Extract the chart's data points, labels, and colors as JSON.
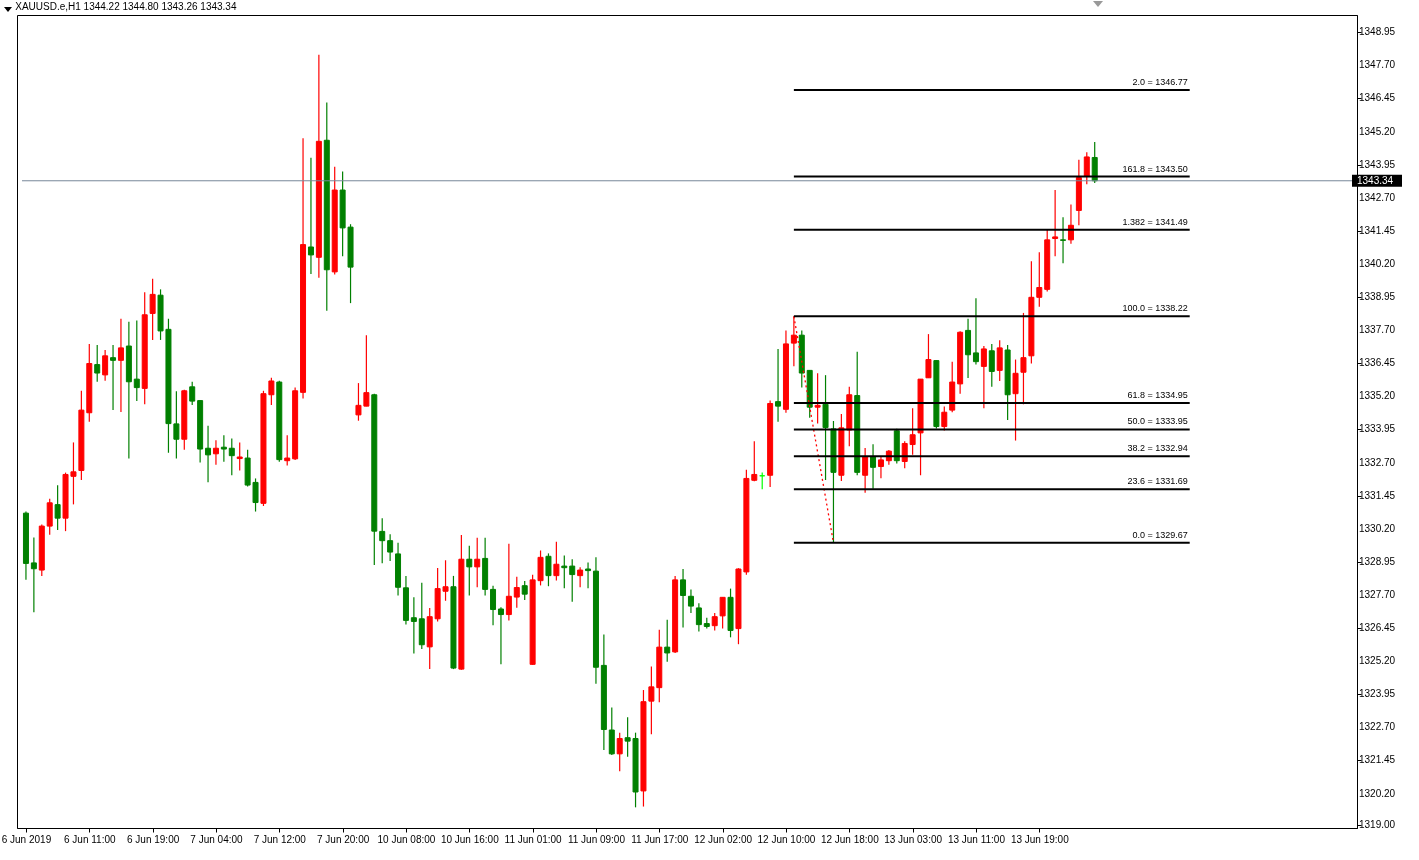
{
  "chart_data": {
    "type": "candlestick",
    "title": "XAUUSD.e,H1 1344.22 1344.80 1343.26 1343.34",
    "categories": [
      "6 Jun 2019",
      null,
      null,
      null,
      null,
      null,
      null,
      null,
      "6 Jun 11:00",
      null,
      null,
      null,
      null,
      null,
      null,
      null,
      "6 Jun 19:00",
      null,
      null,
      null,
      null,
      null,
      null,
      null,
      "7 Jun 04:00",
      null,
      null,
      null,
      null,
      null,
      null,
      null,
      "7 Jun 12:00",
      null,
      null,
      null,
      null,
      null,
      null,
      null,
      "7 Jun 20:00",
      null,
      null,
      null,
      null,
      null,
      null,
      null,
      "10 Jun 08:00",
      null,
      null,
      null,
      null,
      null,
      null,
      null,
      "10 Jun 16:00",
      null,
      null,
      null,
      null,
      null,
      null,
      null,
      "11 Jun 01:00",
      null,
      null,
      null,
      null,
      null,
      null,
      null,
      "11 Jun 09:00",
      null,
      null,
      null,
      null,
      null,
      null,
      null,
      "11 Jun 17:00",
      null,
      null,
      null,
      null,
      null,
      null,
      null,
      "12 Jun 02:00",
      null,
      null,
      null,
      null,
      null,
      null,
      null,
      "12 Jun 10:00",
      null,
      null,
      null,
      null,
      null,
      null,
      null,
      "12 Jun 18:00",
      null,
      null,
      null,
      null,
      null,
      null,
      null,
      "13 Jun 03:00",
      null,
      null,
      null,
      null,
      null,
      null,
      null,
      "13 Jun 11:00",
      null,
      null,
      null,
      null,
      null,
      null,
      null,
      "13 Jun 19:00",
      null,
      null,
      null,
      null,
      null,
      null,
      null,
      null,
      null,
      null,
      null,
      null,
      null,
      null,
      null,
      null,
      null,
      null,
      null,
      null,
      null,
      null,
      null,
      null,
      null,
      null,
      null,
      null,
      null,
      null,
      null,
      null,
      null,
      null,
      null,
      null,
      null,
      null,
      null
    ],
    "ohlc": [
      [
        1330.79,
        1330.85,
        1328.27,
        1328.89
      ],
      [
        1328.91,
        1329.87,
        1327.05,
        1328.69
      ],
      [
        1328.64,
        1330.36,
        1328.42,
        1330.3
      ],
      [
        1330.3,
        1331.33,
        1329.97,
        1331.18
      ],
      [
        1331.11,
        1331.84,
        1330.15,
        1330.6
      ],
      [
        1330.6,
        1332.32,
        1330.11,
        1332.25
      ],
      [
        1332.18,
        1333.46,
        1331.12,
        1332.35
      ],
      [
        1332.4,
        1335.41,
        1332.04,
        1334.68
      ],
      [
        1334.58,
        1337.18,
        1334.24,
        1336.44
      ],
      [
        1336.4,
        1337.14,
        1335.75,
        1336.08
      ],
      [
        1336.01,
        1336.95,
        1335.79,
        1336.73
      ],
      [
        1336.66,
        1337.14,
        1334.68,
        1336.56
      ],
      [
        1336.56,
        1338.13,
        1334.61,
        1337.03
      ],
      [
        1337.1,
        1338.02,
        1332.85,
        1335.75
      ],
      [
        1335.85,
        1338.06,
        1335.02,
        1335.53
      ],
      [
        1335.5,
        1339.13,
        1334.9,
        1338.28
      ],
      [
        1338.33,
        1339.64,
        1337.33,
        1339.05
      ],
      [
        1339.02,
        1339.24,
        1337.33,
        1337.67
      ],
      [
        1337.73,
        1338.13,
        1333.07,
        1334.17
      ],
      [
        1334.16,
        1335.39,
        1332.85,
        1333.58
      ],
      [
        1333.58,
        1335.45,
        1333.18,
        1335.41
      ],
      [
        1335.56,
        1335.75,
        1334.87,
        1335.02
      ],
      [
        1335.04,
        1335.04,
        1332.7,
        1333.21
      ],
      [
        1333.24,
        1334.09,
        1331.96,
        1332.99
      ],
      [
        1333.03,
        1333.54,
        1332.62,
        1333.24
      ],
      [
        1333.28,
        1333.73,
        1332.73,
        1333.21
      ],
      [
        1333.24,
        1333.61,
        1332.22,
        1332.96
      ],
      [
        1332.85,
        1333.46,
        1332.4,
        1332.91
      ],
      [
        1332.87,
        1333.18,
        1331.8,
        1331.85
      ],
      [
        1331.95,
        1332.1,
        1330.85,
        1331.19
      ],
      [
        1331.16,
        1335.41,
        1331.06,
        1335.3
      ],
      [
        1335.26,
        1335.9,
        1334.87,
        1335.78
      ],
      [
        1335.74,
        1335.79,
        1332.73,
        1332.81
      ],
      [
        1332.77,
        1333.73,
        1332.59,
        1332.87
      ],
      [
        1332.84,
        1335.53,
        1332.8,
        1335.41
      ],
      [
        1335.35,
        1344.95,
        1335.12,
        1340.93
      ],
      [
        1340.84,
        1344.21,
        1339.82,
        1340.54
      ],
      [
        1340.45,
        1348.1,
        1339.68,
        1344.83
      ],
      [
        1344.87,
        1346.3,
        1338.43,
        1339.98
      ],
      [
        1339.9,
        1343.87,
        1339.8,
        1342.99
      ],
      [
        1342.99,
        1343.69,
        1340.49,
        1341.56
      ],
      [
        1341.59,
        1341.7,
        1338.72,
        1340.08
      ],
      [
        1334.5,
        1335.7,
        1334.28,
        1334.86
      ],
      [
        1334.83,
        1337.51,
        1334.83,
        1335.34
      ],
      [
        1335.26,
        1335.3,
        1328.83,
        1330.11
      ],
      [
        1330.1,
        1330.6,
        1328.9,
        1329.75
      ],
      [
        1329.75,
        1329.99,
        1328.98,
        1329.32
      ],
      [
        1329.25,
        1329.67,
        1327.68,
        1327.99
      ],
      [
        1327.97,
        1328.42,
        1326.58,
        1326.74
      ],
      [
        1326.84,
        1327.61,
        1325.49,
        1326.7
      ],
      [
        1326.8,
        1328.16,
        1325.66,
        1325.82
      ],
      [
        1325.74,
        1327.21,
        1324.9,
        1326.88
      ],
      [
        1326.8,
        1328.72,
        1326.7,
        1327.94
      ],
      [
        1327.84,
        1329.01,
        1327.48,
        1328.01
      ],
      [
        1328.01,
        1328.42,
        1324.9,
        1324.94
      ],
      [
        1324.9,
        1329.96,
        1324.88,
        1329.05
      ],
      [
        1329.05,
        1329.56,
        1327.68,
        1328.76
      ],
      [
        1328.76,
        1329.86,
        1327.99,
        1329.05
      ],
      [
        1329.08,
        1329.86,
        1327.68,
        1327.91
      ],
      [
        1327.91,
        1328.05,
        1326.56,
        1327.15
      ],
      [
        1327.17,
        1327.24,
        1325.08,
        1326.96
      ],
      [
        1326.96,
        1329.63,
        1326.74,
        1327.65
      ],
      [
        1327.62,
        1328.39,
        1327.22,
        1327.98
      ],
      [
        1328.05,
        1328.23,
        1327.51,
        1327.73
      ],
      [
        1325.08,
        1328.46,
        1325.06,
        1328.27
      ],
      [
        1328.24,
        1329.38,
        1328.06,
        1329.12
      ],
      [
        1329.16,
        1329.27,
        1328.03,
        1328.43
      ],
      [
        1328.43,
        1329.71,
        1328.25,
        1328.86
      ],
      [
        1328.79,
        1329.19,
        1327.95,
        1328.73
      ],
      [
        1328.79,
        1329.05,
        1327.44,
        1328.47
      ],
      [
        1328.43,
        1328.75,
        1327.99,
        1328.64
      ],
      [
        1328.68,
        1328.93,
        1327.95,
        1328.62
      ],
      [
        1328.6,
        1329.12,
        1324.35,
        1324.97
      ],
      [
        1325.04,
        1326.21,
        1321.85,
        1322.62
      ],
      [
        1322.6,
        1323.45,
        1321.66,
        1321.7
      ],
      [
        1321.7,
        1322.5,
        1321.04,
        1322.28
      ],
      [
        1322.31,
        1323.08,
        1321.59,
        1322.18
      ],
      [
        1322.28,
        1322.5,
        1319.68,
        1320.26
      ],
      [
        1320.3,
        1324.11,
        1319.71,
        1323.67
      ],
      [
        1323.69,
        1325.0,
        1322.44,
        1324.23
      ],
      [
        1324.2,
        1326.39,
        1323.65,
        1325.73
      ],
      [
        1325.73,
        1326.76,
        1325.18,
        1325.51
      ],
      [
        1325.55,
        1328.42,
        1325.51,
        1328.27
      ],
      [
        1328.27,
        1328.68,
        1326.47,
        1327.68
      ],
      [
        1327.65,
        1327.91,
        1327.02,
        1327.28
      ],
      [
        1327.21,
        1327.39,
        1326.32,
        1326.58
      ],
      [
        1326.62,
        1326.84,
        1326.43,
        1326.51
      ],
      [
        1326.54,
        1327.02,
        1326.36,
        1326.88
      ],
      [
        1326.91,
        1327.61,
        1326.43,
        1327.61
      ],
      [
        1327.61,
        1327.94,
        1326.1,
        1326.36
      ],
      [
        1326.43,
        1328.71,
        1325.84,
        1328.68
      ],
      [
        1328.57,
        1332.43,
        1328.46,
        1332.1
      ],
      [
        1332.03,
        1333.5,
        1331.99,
        1332.25
      ],
      [
        1332.2,
        1332.32,
        1331.69,
        1332.2
      ],
      [
        1332.22,
        1335.04,
        1331.78,
        1334.93
      ],
      [
        1335.0,
        1336.99,
        1334.24,
        1334.83
      ],
      [
        1334.71,
        1337.69,
        1334.58,
        1337.18
      ],
      [
        1337.21,
        1338.22,
        1336.34,
        1337.51
      ],
      [
        1337.51,
        1337.69,
        1335.53,
        1336.08
      ],
      [
        1336.18,
        1336.18,
        1334.39,
        1334.79
      ],
      [
        1334.79,
        1336.07,
        1334.17,
        1334.86
      ],
      [
        1334.9,
        1336.0,
        1332.04,
        1334.02
      ],
      [
        1333.97,
        1334.27,
        1329.67,
        1332.33
      ],
      [
        1332.22,
        1334.53,
        1332.0,
        1334.01
      ],
      [
        1333.93,
        1335.56,
        1333.32,
        1335.26
      ],
      [
        1335.23,
        1336.88,
        1332.22,
        1332.33
      ],
      [
        1332.22,
        1333.25,
        1331.56,
        1332.92
      ],
      [
        1332.92,
        1333.39,
        1331.71,
        1332.52
      ],
      [
        1332.55,
        1332.92,
        1332.11,
        1332.8
      ],
      [
        1332.77,
        1333.17,
        1332.62,
        1333.13
      ],
      [
        1333.9,
        1333.98,
        1332.66,
        1332.77
      ],
      [
        1332.74,
        1333.5,
        1332.48,
        1333.42
      ],
      [
        1333.38,
        1334.75,
        1332.99,
        1333.75
      ],
      [
        1333.82,
        1335.85,
        1332.22,
        1335.85
      ],
      [
        1335.9,
        1337.55,
        1335.9,
        1336.59
      ],
      [
        1336.55,
        1336.55,
        1333.99,
        1334.06
      ],
      [
        1334.06,
        1334.82,
        1333.91,
        1334.6
      ],
      [
        1334.68,
        1336.51,
        1334.6,
        1335.74
      ],
      [
        1335.67,
        1337.66,
        1335.3,
        1337.62
      ],
      [
        1337.69,
        1338.13,
        1335.89,
        1336.77
      ],
      [
        1336.84,
        1338.9,
        1336.4,
        1336.51
      ],
      [
        1336.33,
        1337.1,
        1334.75,
        1336.99
      ],
      [
        1336.92,
        1337.18,
        1335.56,
        1336.14
      ],
      [
        1336.18,
        1337.32,
        1335.78,
        1337.03
      ],
      [
        1336.95,
        1337.14,
        1334.31,
        1335.26
      ],
      [
        1335.3,
        1336.59,
        1333.53,
        1336.07
      ],
      [
        1336.11,
        1338.35,
        1334.9,
        1336.66
      ],
      [
        1336.73,
        1340.3,
        1336.44,
        1338.94
      ],
      [
        1338.94,
        1340.64,
        1338.58,
        1339.31
      ],
      [
        1339.24,
        1341.52,
        1339.16,
        1341.11
      ],
      [
        1341.16,
        1342.99,
        1340.49,
        1341.22
      ],
      [
        1341.11,
        1341.96,
        1340.23,
        1341.09
      ],
      [
        1341.11,
        1342.44,
        1340.96,
        1341.66
      ],
      [
        1342.22,
        1344.13,
        1341.66,
        1343.46
      ],
      [
        1343.52,
        1344.42,
        1343.21,
        1344.24
      ],
      [
        1344.22,
        1344.8,
        1343.26,
        1343.34
      ],
      null,
      null,
      null,
      null,
      null,
      null,
      null,
      null,
      null,
      null,
      null,
      null,
      null,
      null,
      null,
      null,
      null,
      null,
      null,
      null,
      null,
      null,
      null,
      null,
      null,
      null,
      null,
      null,
      null,
      null,
      null,
      null
    ],
    "colors": [
      "#008000",
      "#008000",
      "#ff0000",
      "#ff0000",
      "#008000",
      "#ff0000",
      "#ff0000",
      "#ff0000",
      "#ff0000",
      "#008000",
      "#ff0000",
      "#008000",
      "#ff0000",
      "#008000",
      "#008000",
      "#ff0000",
      "#ff0000",
      "#008000",
      "#008000",
      "#008000",
      "#ff0000",
      "#008000",
      "#008000",
      "#008000",
      "#ff0000",
      "#008000",
      "#008000",
      "#ff0000",
      "#008000",
      "#008000",
      "#ff0000",
      "#ff0000",
      "#008000",
      "#ff0000",
      "#ff0000",
      "#ff0000",
      "#008000",
      "#ff0000",
      "#008000",
      "#ff0000",
      "#008000",
      "#008000",
      "#ff0000",
      "#ff0000",
      "#008000",
      "#008000",
      "#008000",
      "#008000",
      "#008000",
      "#008000",
      "#008000",
      "#ff0000",
      "#ff0000",
      "#ff0000",
      "#008000",
      "#ff0000",
      "#008000",
      "#ff0000",
      "#008000",
      "#008000",
      "#008000",
      "#ff0000",
      "#ff0000",
      "#008000",
      "#ff0000",
      "#ff0000",
      "#008000",
      "#ff0000",
      "#008000",
      "#008000",
      "#ff0000",
      "#008000",
      "#008000",
      "#008000",
      "#008000",
      "#ff0000",
      "#008000",
      "#008000",
      "#ff0000",
      "#ff0000",
      "#ff0000",
      "#008000",
      "#ff0000",
      "#008000",
      "#008000",
      "#008000",
      "#008000",
      "#ff0000",
      "#ff0000",
      "#008000",
      "#ff0000",
      "#ff0000",
      "#ff0000",
      "#00ff00",
      "#ff0000",
      "#008000",
      "#ff0000",
      "#ff0000",
      "#008000",
      "#008000",
      "#ff0000",
      "#008000",
      "#008000",
      "#ff0000",
      "#ff0000",
      "#008000",
      "#ff0000",
      "#008000",
      "#ff0000",
      "#ff0000",
      "#008000",
      "#ff0000",
      "#ff0000",
      "#ff0000",
      "#ff0000",
      "#008000",
      "#ff0000",
      "#ff0000",
      "#ff0000",
      "#008000",
      "#008000",
      "#ff0000",
      "#008000",
      "#ff0000",
      "#008000",
      "#ff0000",
      "#ff0000",
      "#ff0000",
      "#ff0000",
      "#ff0000",
      "#ff0000",
      "#008000",
      "#ff0000",
      "#ff0000",
      "#ff0000",
      "#008000",
      null,
      null,
      null,
      null,
      null,
      null,
      null,
      null,
      null,
      null,
      null,
      null,
      null,
      null,
      null,
      null,
      null,
      null,
      null,
      null,
      null,
      null,
      null,
      null,
      null,
      null,
      null,
      null,
      null,
      null,
      null,
      null
    ],
    "series": [
      {
        "type": "line",
        "color": "#ff0000",
        "line_style": "dotted",
        "values": [
          null,
          null,
          null,
          null,
          null,
          null,
          null,
          null,
          null,
          null,
          null,
          null,
          null,
          null,
          null,
          null,
          null,
          null,
          null,
          null,
          null,
          null,
          null,
          null,
          null,
          null,
          null,
          null,
          null,
          null,
          null,
          null,
          null,
          null,
          null,
          null,
          null,
          null,
          null,
          null,
          null,
          null,
          null,
          null,
          null,
          null,
          null,
          null,
          null,
          null,
          null,
          null,
          null,
          null,
          null,
          null,
          null,
          null,
          null,
          null,
          null,
          null,
          null,
          null,
          null,
          null,
          null,
          null,
          null,
          null,
          null,
          null,
          null,
          null,
          null,
          null,
          null,
          null,
          null,
          null,
          null,
          null,
          null,
          null,
          null,
          null,
          null,
          null,
          null,
          null,
          null,
          null,
          null,
          null,
          null,
          null,
          null,
          1338.22,
          null,
          null,
          null,
          null,
          1329.67,
          null,
          null,
          null,
          null,
          null,
          null,
          null,
          null,
          null,
          null,
          null,
          null,
          null,
          null,
          null,
          null,
          null,
          null,
          null,
          null,
          null,
          null,
          null,
          null,
          null,
          null,
          null,
          null,
          null,
          null,
          null,
          null,
          null,
          null,
          null,
          null,
          null,
          null,
          null,
          null,
          null,
          null,
          null,
          null,
          null,
          null,
          null,
          null,
          null,
          null,
          null,
          null,
          null,
          null,
          null,
          null,
          null,
          null,
          null,
          null,
          null,
          null,
          null,
          null,
          null
        ]
      }
    ],
    "ref_lines": [
      {
        "axis": "y",
        "value": 1343.34,
        "label": "1343.34",
        "color": "#778899"
      },
      {
        "axis": "y",
        "value": 1346.77,
        "label": "2.0 = 1346.77",
        "color": "#000000"
      },
      {
        "axis": "y",
        "value": 1343.5,
        "label": "161.8 = 1343.50",
        "color": "#000000"
      },
      {
        "axis": "y",
        "value": 1341.49,
        "label": "1.382 = 1341.49",
        "color": "#000000"
      },
      {
        "axis": "y",
        "value": 1338.22,
        "label": "100.0 = 1338.22",
        "color": "#000000"
      },
      {
        "axis": "y",
        "value": 1334.95,
        "label": "61.8 = 1334.95",
        "color": "#000000"
      },
      {
        "axis": "y",
        "value": 1333.95,
        "label": "50.0 = 1333.95",
        "color": "#000000"
      },
      {
        "axis": "y",
        "value": 1332.94,
        "label": "38.2 = 1332.94",
        "color": "#000000"
      },
      {
        "axis": "y",
        "value": 1331.69,
        "label": "23.6 = 1331.69",
        "color": "#000000"
      },
      {
        "axis": "y",
        "value": 1329.67,
        "label": "0.0 = 1329.67",
        "color": "#000000"
      }
    ],
    "ylim": [
      1318.9,
      1349.6
    ],
    "yticks": [
      {
        "value": 1319,
        "label": "1319.00"
      },
      {
        "value": 1320.2,
        "label": "1320.20"
      },
      {
        "value": 1321.45,
        "label": "1321.45"
      },
      {
        "value": 1322.7,
        "label": "1322.70"
      },
      {
        "value": 1323.95,
        "label": "1323.95"
      },
      {
        "value": 1325.2,
        "label": "1325.20"
      },
      {
        "value": 1326.45,
        "label": "1326.45"
      },
      {
        "value": 1327.7,
        "label": "1327.70"
      },
      {
        "value": 1328.95,
        "label": "1328.95"
      },
      {
        "value": 1330.2,
        "label": "1330.20"
      },
      {
        "value": 1331.45,
        "label": "1331.45"
      },
      {
        "value": 1332.7,
        "label": "1332.70"
      },
      {
        "value": 1333.95,
        "label": "1333.95"
      },
      {
        "value": 1335.2,
        "label": "1335.20"
      },
      {
        "value": 1336.45,
        "label": "1336.45"
      },
      {
        "value": 1337.7,
        "label": "1337.70"
      },
      {
        "value": 1338.95,
        "label": "1338.95"
      },
      {
        "value": 1340.2,
        "label": "1340.20"
      },
      {
        "value": 1341.45,
        "label": "1341.45"
      },
      {
        "value": 1342.7,
        "label": "1342.70"
      },
      {
        "value": 1343.95,
        "label": "1343.95"
      },
      {
        "value": 1345.2,
        "label": "1345.20"
      },
      {
        "value": 1346.45,
        "label": "1346.45"
      },
      {
        "value": 1347.7,
        "label": "1347.70"
      },
      {
        "value": 1348.95,
        "label": "1348.95"
      }
    ]
  }
}
